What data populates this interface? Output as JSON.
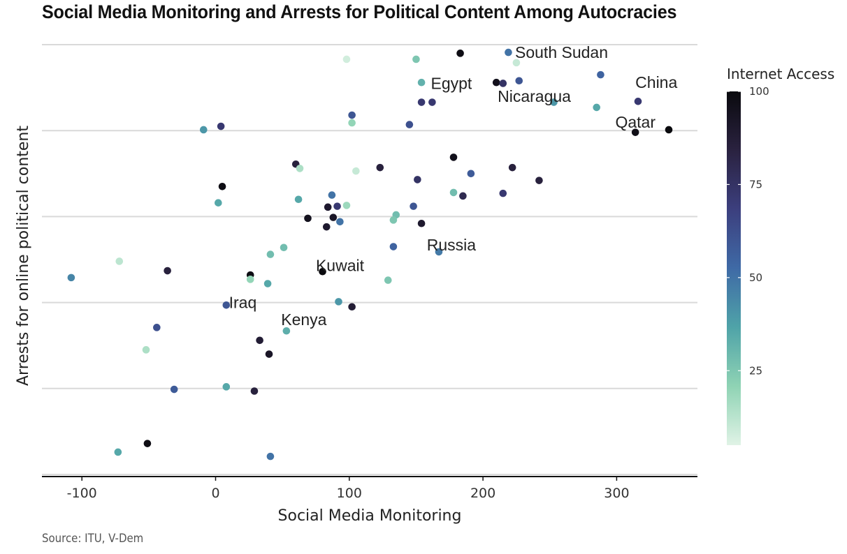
{
  "title": "Social Media Monitoring and Arrests for Political Content Among Autocracies",
  "source": "Source: ITU, V-Dem",
  "chart_data": {
    "type": "scatter",
    "title": "Social Media Monitoring and Arrests for Political Content Among Autocracies",
    "xlabel": "Social Media Monitoring",
    "ylabel": "Arrests for online political content",
    "xlim": [
      -130,
      360
    ],
    "ylim": [
      -25,
      480
    ],
    "x_ticks": [
      "-100",
      "0",
      "100",
      "200",
      "300"
    ],
    "x_tick_values": [
      -100,
      0,
      100,
      200,
      300
    ],
    "y_gridlines": [
      0,
      100,
      200,
      300,
      400,
      500
    ],
    "y_tick_labels_shown": false,
    "grid": "horizontal",
    "legend": {
      "title": "Internet Access",
      "type": "colorbar",
      "placement": "right",
      "range": [
        5,
        100
      ],
      "ticks": [
        "25",
        "50",
        "75",
        "100"
      ],
      "tick_values": [
        25,
        50,
        75,
        100
      ],
      "colors": [
        "#e0f3e6",
        "#8fd3b4",
        "#4fa3a8",
        "#3f6aa6",
        "#3c3f7e",
        "#2a2240",
        "#0a0a0e"
      ]
    },
    "points": [
      {
        "x": 183,
        "y": 490,
        "c": 98
      },
      {
        "x": 219,
        "y": 491,
        "c": 50
      },
      {
        "x": 98,
        "y": 483,
        "c": 8
      },
      {
        "x": 150,
        "y": 483,
        "c": 25
      },
      {
        "x": 225,
        "y": 479,
        "c": 10
      },
      {
        "x": 210,
        "y": 456,
        "c": 96
      },
      {
        "x": 215,
        "y": 455,
        "c": 75
      },
      {
        "x": 227,
        "y": 458,
        "c": 60
      },
      {
        "x": 154,
        "y": 456,
        "c": 32
      },
      {
        "x": 288,
        "y": 465,
        "c": 55
      },
      {
        "x": 154,
        "y": 433,
        "c": 72
      },
      {
        "x": 162,
        "y": 433,
        "c": 72
      },
      {
        "x": 253,
        "y": 433,
        "c": 40
      },
      {
        "x": 316,
        "y": 434,
        "c": 72
      },
      {
        "x": 285,
        "y": 427,
        "c": 35
      },
      {
        "x": 102,
        "y": 418,
        "c": 60
      },
      {
        "x": 102,
        "y": 409,
        "c": 20
      },
      {
        "x": 145,
        "y": 407,
        "c": 62
      },
      {
        "x": 314,
        "y": 398,
        "c": 97
      },
      {
        "x": 339,
        "y": 401,
        "c": 100
      },
      {
        "x": -9,
        "y": 401,
        "c": 40
      },
      {
        "x": 4,
        "y": 405,
        "c": 72
      },
      {
        "x": 60,
        "y": 361,
        "c": 85
      },
      {
        "x": 63,
        "y": 356,
        "c": 15
      },
      {
        "x": 105,
        "y": 353,
        "c": 10
      },
      {
        "x": 123,
        "y": 357,
        "c": 85
      },
      {
        "x": 178,
        "y": 369,
        "c": 96
      },
      {
        "x": 191,
        "y": 350,
        "c": 58
      },
      {
        "x": 222,
        "y": 357,
        "c": 85
      },
      {
        "x": 242,
        "y": 342,
        "c": 85
      },
      {
        "x": 151,
        "y": 343,
        "c": 75
      },
      {
        "x": 5,
        "y": 335,
        "c": 98
      },
      {
        "x": 178,
        "y": 328,
        "c": 28
      },
      {
        "x": 185,
        "y": 324,
        "c": 80
      },
      {
        "x": 215,
        "y": 327,
        "c": 72
      },
      {
        "x": 87,
        "y": 325,
        "c": 50
      },
      {
        "x": 62,
        "y": 320,
        "c": 35
      },
      {
        "x": 2,
        "y": 316,
        "c": 35
      },
      {
        "x": 84,
        "y": 311,
        "c": 90
      },
      {
        "x": 91,
        "y": 312,
        "c": 72
      },
      {
        "x": 98,
        "y": 313,
        "c": 18
      },
      {
        "x": 148,
        "y": 312,
        "c": 60
      },
      {
        "x": 135,
        "y": 302,
        "c": 28
      },
      {
        "x": 133,
        "y": 296,
        "c": 25
      },
      {
        "x": 69,
        "y": 298,
        "c": 95
      },
      {
        "x": 88,
        "y": 299,
        "c": 92
      },
      {
        "x": 93,
        "y": 294,
        "c": 50
      },
      {
        "x": 154,
        "y": 292,
        "c": 90
      },
      {
        "x": 83,
        "y": 288,
        "c": 90
      },
      {
        "x": 51,
        "y": 264,
        "c": 28
      },
      {
        "x": 133,
        "y": 265,
        "c": 55
      },
      {
        "x": 167,
        "y": 259,
        "c": 48
      },
      {
        "x": 41,
        "y": 256,
        "c": 28
      },
      {
        "x": -72,
        "y": 248,
        "c": 12
      },
      {
        "x": -36,
        "y": 237,
        "c": 85
      },
      {
        "x": 80,
        "y": 236,
        "c": 100
      },
      {
        "x": 26,
        "y": 232,
        "c": 98
      },
      {
        "x": 26,
        "y": 227,
        "c": 20
      },
      {
        "x": -108,
        "y": 229,
        "c": 45
      },
      {
        "x": 129,
        "y": 226,
        "c": 25
      },
      {
        "x": 39,
        "y": 222,
        "c": 35
      },
      {
        "x": 92,
        "y": 201,
        "c": 40
      },
      {
        "x": 8,
        "y": 197,
        "c": 60
      },
      {
        "x": 102,
        "y": 195,
        "c": 88
      },
      {
        "x": -44,
        "y": 171,
        "c": 62
      },
      {
        "x": 53,
        "y": 167,
        "c": 33
      },
      {
        "x": 33,
        "y": 156,
        "c": 88
      },
      {
        "x": -52,
        "y": 145,
        "c": 15
      },
      {
        "x": 40,
        "y": 140,
        "c": 92
      },
      {
        "x": 8,
        "y": 102,
        "c": 35
      },
      {
        "x": -31,
        "y": 99,
        "c": 58
      },
      {
        "x": 29,
        "y": 97,
        "c": 85
      },
      {
        "x": -51,
        "y": 36,
        "c": 98
      },
      {
        "x": -73,
        "y": 26,
        "c": 35
      },
      {
        "x": 41,
        "y": 21,
        "c": 50
      }
    ],
    "annotations": [
      {
        "label": "South Sudan",
        "x": 224,
        "y": 491
      },
      {
        "label": "Egypt",
        "x": 161,
        "y": 455
      },
      {
        "label": "Nicaragua",
        "x": 211,
        "y": 440
      },
      {
        "label": "China",
        "x": 314,
        "y": 456
      },
      {
        "label": "Qatar",
        "x": 299,
        "y": 410
      },
      {
        "label": "Russia",
        "x": 158,
        "y": 267
      },
      {
        "label": "Kuwait",
        "x": 75,
        "y": 243
      },
      {
        "label": "Iraq",
        "x": 10,
        "y": 200
      },
      {
        "label": "Kenya",
        "x": 49,
        "y": 180
      }
    ]
  }
}
